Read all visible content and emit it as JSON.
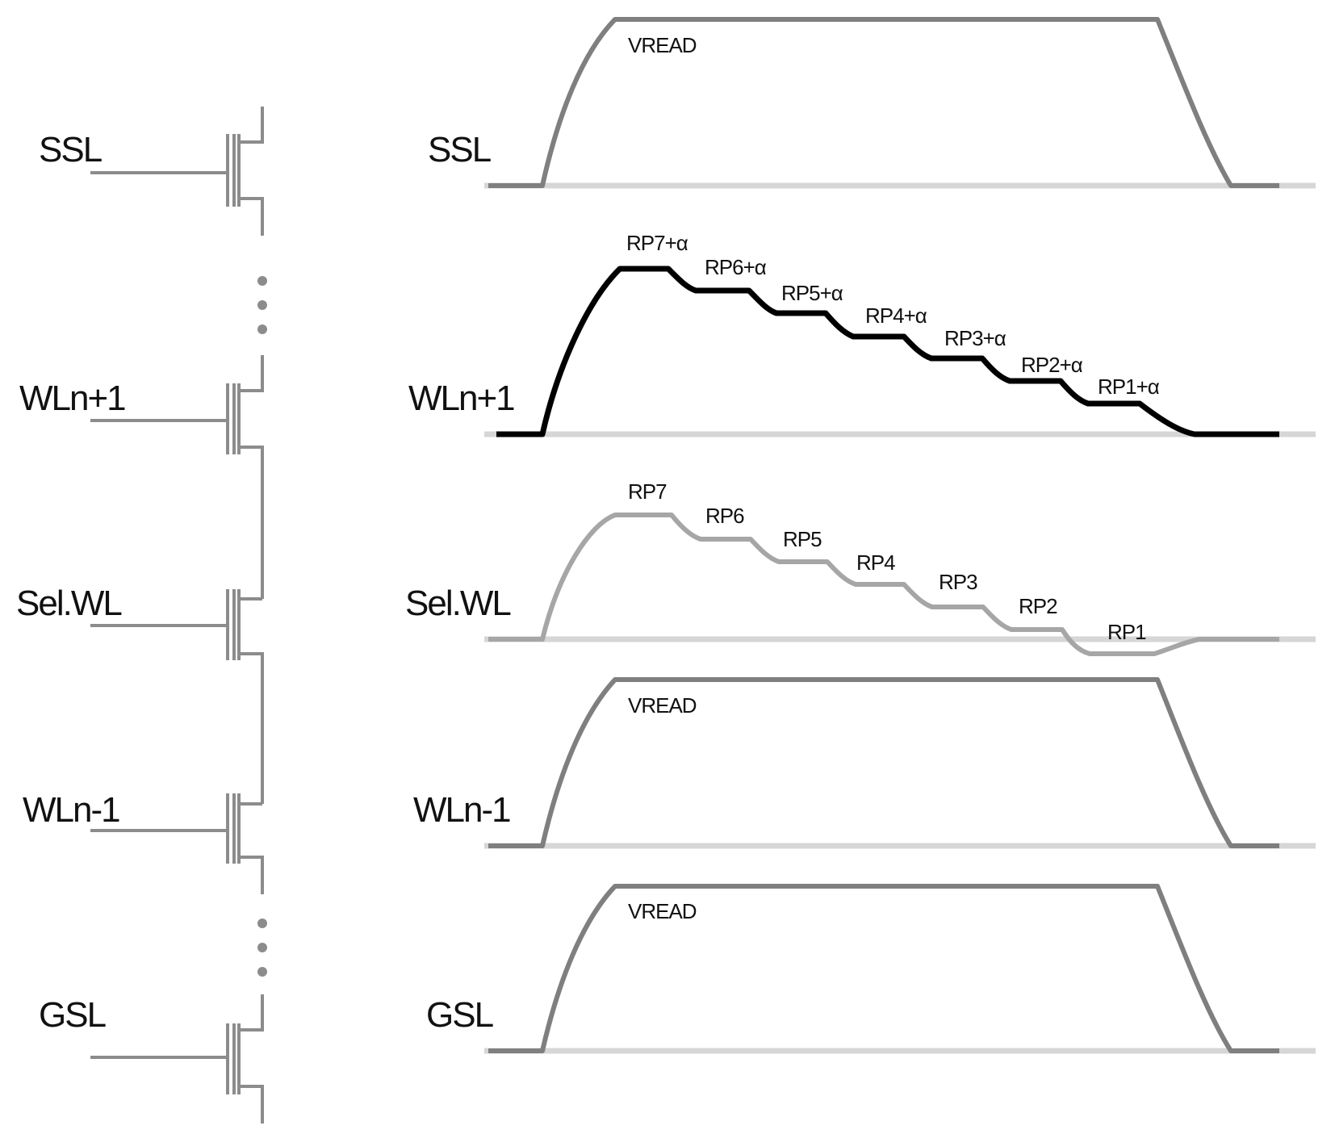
{
  "circuit": {
    "labels": [
      "SSL",
      "WLn+1",
      "Sel.WL",
      "WLn-1",
      "GSL"
    ]
  },
  "waveforms": {
    "ssl": {
      "label": "SSL",
      "level": "VREAD"
    },
    "wl_next": {
      "label": "WLn+1",
      "steps": [
        "RP7+α",
        "RP6+α",
        "RP5+α",
        "RP4+α",
        "RP3+α",
        "RP2+α",
        "RP1+α"
      ]
    },
    "sel_wl": {
      "label": "Sel.WL",
      "steps": [
        "RP7",
        "RP6",
        "RP5",
        "RP4",
        "RP3",
        "RP2",
        "RP1"
      ]
    },
    "wl_prev": {
      "label": "WLn-1",
      "level": "VREAD"
    },
    "gsl": {
      "label": "GSL",
      "level": "VREAD"
    }
  },
  "colors": {
    "circuit_line": "#8c8c8c",
    "baseline": "#d6d6d6",
    "vread_wave": "#7f7f7f",
    "wl_next_wave": "#000000",
    "sel_wl_wave": "#a6a6a6",
    "text": "#111111"
  }
}
